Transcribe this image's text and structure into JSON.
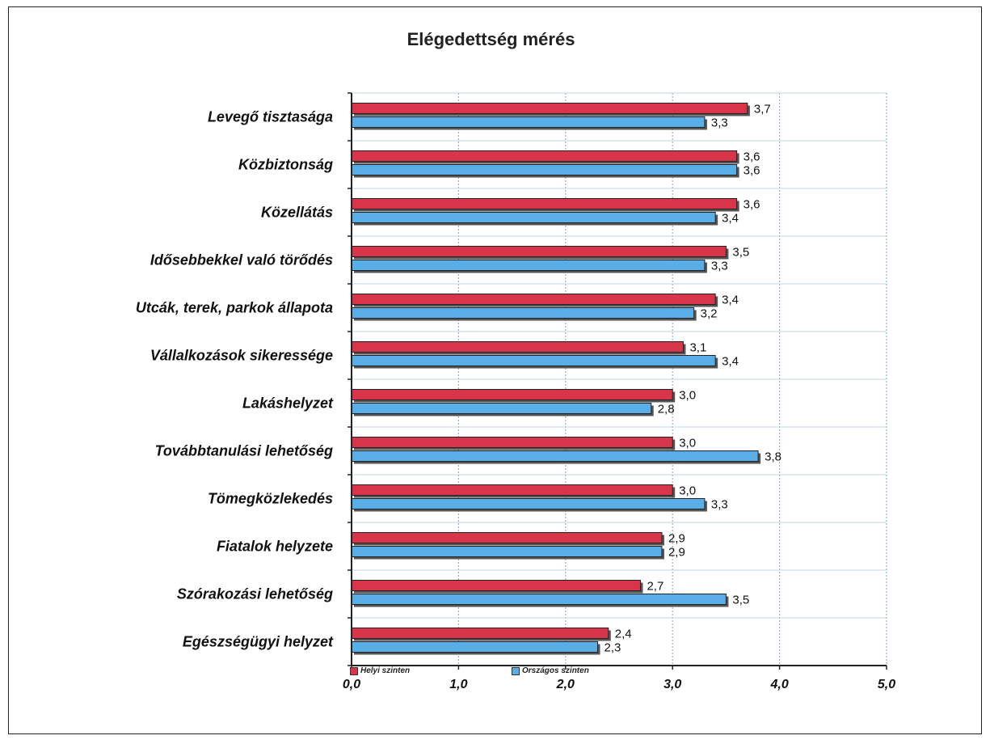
{
  "chart_data": {
    "type": "bar",
    "orientation": "horizontal",
    "title": "Elégedettség mérés",
    "categories": [
      "Levegő tisztasága",
      "Közbiztonság",
      "Közellátás",
      "Idősebbekkel való törődés",
      "Utcák, terek, parkok állapota",
      "Vállalkozások sikeressége",
      "Lakáshelyzet",
      "Továbbtanulási lehetőség",
      "Tömegközlekedés",
      "Fiatalok helyzete",
      "Szórakozási lehetőség",
      "Egészségügyi helyzet"
    ],
    "series": [
      {
        "name": "Helyi szinten",
        "color": "#d8344a",
        "values": [
          3.7,
          3.6,
          3.6,
          3.5,
          3.4,
          3.1,
          3.0,
          3.0,
          3.0,
          2.9,
          2.7,
          2.4
        ],
        "labels": [
          "3,7",
          "3,6",
          "3,6",
          "3,5",
          "3,4",
          "3,1",
          "3,0",
          "3,0",
          "3,0",
          "2,9",
          "2,7",
          "2,4"
        ]
      },
      {
        "name": "Országos szinten",
        "color": "#5aaee8",
        "values": [
          3.3,
          3.6,
          3.4,
          3.3,
          3.2,
          3.4,
          2.8,
          3.8,
          3.3,
          2.9,
          3.5,
          2.3
        ],
        "labels": [
          "3,3",
          "3,6",
          "3,4",
          "3,3",
          "3,2",
          "3,4",
          "2,8",
          "3,8",
          "3,3",
          "2,9",
          "3,5",
          "2,3"
        ]
      }
    ],
    "xlim": [
      0,
      5
    ],
    "xticks": [
      "0,0",
      "1,0",
      "2,0",
      "3,0",
      "4,0",
      "5,0"
    ],
    "grid": true,
    "legend_position": "bottom-left"
  }
}
